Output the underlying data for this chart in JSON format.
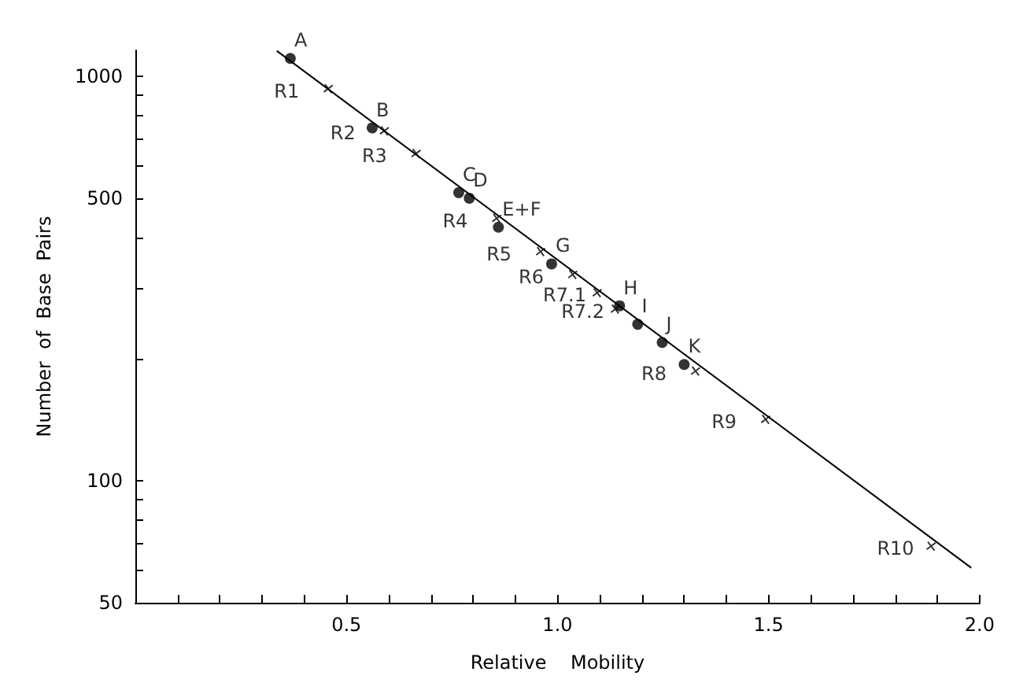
{
  "chart_data": {
    "type": "scatter",
    "xlabel": "Relative    Mobility",
    "ylabel": "Number  of  Base  Pairs",
    "log": "y",
    "grid": false,
    "xlim": [
      0,
      2.0
    ],
    "xticks": [
      {
        "value": 0.1,
        "label": null
      },
      {
        "value": 0.2,
        "label": null
      },
      {
        "value": 0.3,
        "label": null
      },
      {
        "value": 0.4,
        "label": null
      },
      {
        "value": 0.5,
        "label": "0.5"
      },
      {
        "value": 0.6,
        "label": null
      },
      {
        "value": 0.7,
        "label": null
      },
      {
        "value": 0.8,
        "label": null
      },
      {
        "value": 0.9,
        "label": null
      },
      {
        "value": 1.0,
        "label": "1.0"
      },
      {
        "value": 1.1,
        "label": null
      },
      {
        "value": 1.2,
        "label": null
      },
      {
        "value": 1.3,
        "label": null
      },
      {
        "value": 1.4,
        "label": null
      },
      {
        "value": 1.5,
        "label": "1.5"
      },
      {
        "value": 1.6,
        "label": null
      },
      {
        "value": 1.7,
        "label": null
      },
      {
        "value": 1.8,
        "label": null
      },
      {
        "value": 1.9,
        "label": null
      },
      {
        "value": 2.0,
        "label": "2.0"
      }
    ],
    "ylim": [
      50,
      1160
    ],
    "yticks": [
      50,
      {
        "value": 60,
        "label": null
      },
      {
        "value": 70,
        "label": null
      },
      {
        "value": 80,
        "label": null
      },
      {
        "value": 90,
        "label": null
      },
      100,
      {
        "value": 200,
        "label": null
      },
      {
        "value": 300,
        "label": null
      },
      {
        "value": 400,
        "label": null
      },
      500,
      {
        "value": 600,
        "label": null
      },
      {
        "value": 700,
        "label": null
      },
      {
        "value": 800,
        "label": null
      },
      {
        "value": 900,
        "label": null
      },
      1000
    ],
    "series": [
      {
        "type": "line",
        "marker": "none",
        "color": "#000000",
        "x": [
          0.335,
          1.98
        ],
        "values": [
          1157,
          61
        ]
      },
      {
        "marker": "cross",
        "color": "#000000",
        "x": [
          0.457,
          0.59,
          0.665,
          0.856,
          0.96,
          1.036,
          1.094,
          1.137,
          1.327,
          1.493,
          1.885
        ],
        "values": [
          933,
          734,
          645,
          446,
          369,
          324,
          292,
          266,
          187,
          142,
          69
        ],
        "value_labels": [
          "R1",
          "R2",
          "R3",
          "R4",
          "R5",
          "R6",
          "R7.1",
          "R7.2",
          "R8",
          "R9",
          "R10"
        ]
      },
      {
        "marker": "circle",
        "color": "#000000",
        "x": [
          0.367,
          0.561,
          0.766,
          0.791,
          0.86,
          0.986,
          1.147,
          1.19,
          1.248,
          1.3
        ],
        "values": [
          1108,
          746,
          516,
          500,
          424,
          344,
          271,
          244,
          220,
          194
        ],
        "value_labels": [
          "A",
          "B",
          "C",
          "D",
          "E+F",
          "G",
          "H",
          "I",
          "J",
          "K"
        ]
      }
    ]
  }
}
